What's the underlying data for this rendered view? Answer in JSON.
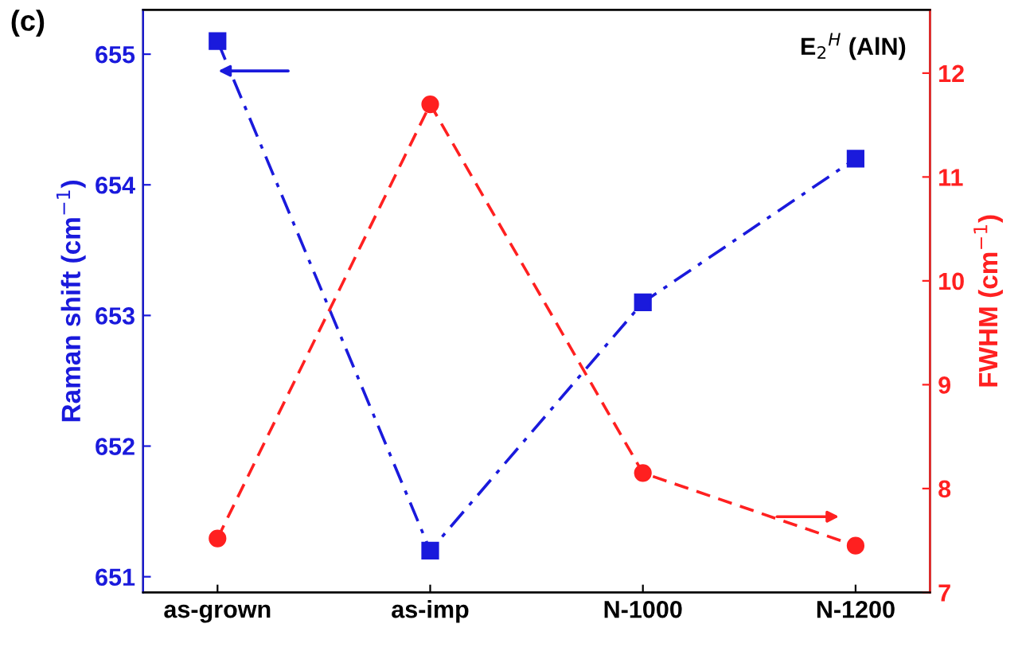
{
  "chart_data": {
    "type": "line",
    "categories": [
      "as-grown",
      "as-imp",
      "N-1000",
      "N-1200"
    ],
    "ylabel": "Raman shift (cm$^{−1}$)",
    "y2label": "FWHM (cm$^{−1}$)",
    "annotations": [
      "(c)",
      "E$_{2}$$^{H}$ (AlN)"
    ],
    "series": [
      {
        "color": "#1a1adc",
        "values": [
          655.1,
          651.2,
          653.1,
          654.2
        ],
        "marker": "square",
        "line_style": "dashdot"
      },
      {
        "color": "#ff2020",
        "values": [
          7.52,
          11.7,
          8.15,
          7.45
        ],
        "marker": "circle",
        "line_style": "dashed",
        "axis": "y2"
      }
    ],
    "ylim": [
      650.88,
      655.34
    ],
    "yticks": [
      651,
      652,
      653,
      654,
      655
    ],
    "y2lim": [
      7,
      12.61
    ],
    "y2ticks": [
      7,
      8,
      9,
      10,
      11,
      12
    ],
    "grid": false,
    "legend": false
  }
}
